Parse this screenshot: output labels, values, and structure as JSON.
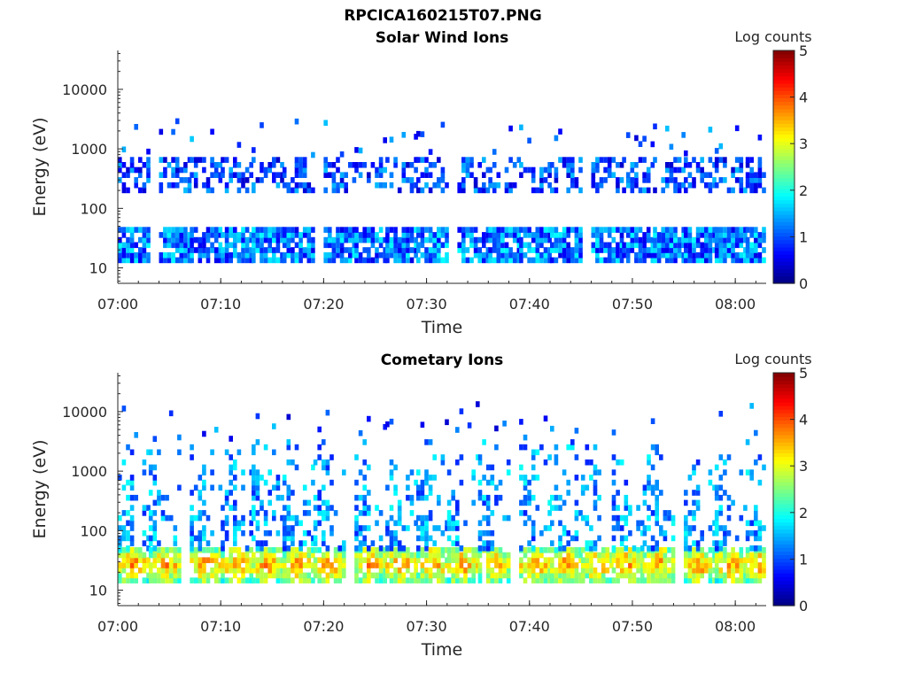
{
  "figure": {
    "title": "RPCICA160215T07.PNG"
  },
  "colorscale": {
    "label": "Log counts",
    "ticks": [
      "0",
      "1",
      "2",
      "3",
      "4",
      "5"
    ],
    "range": [
      0,
      5
    ],
    "colormap": "jet"
  },
  "chart_data": [
    {
      "type": "heatmap",
      "title": "Solar Wind Ions",
      "xlabel": "Time",
      "ylabel": "Energy (eV)",
      "x_ticks": [
        "07:00",
        "07:10",
        "07:20",
        "07:30",
        "07:40",
        "07:50",
        "08:00"
      ],
      "y_ticks": [
        "10",
        "100",
        "1000",
        "10000"
      ],
      "y_scale": "log",
      "xlim": [
        "07:00",
        "08:03"
      ],
      "ylim": [
        5.5,
        45000
      ],
      "colorbar_label": "Log counts",
      "color_range": [
        0,
        5
      ],
      "sweep_start_times": [
        "07:00",
        "07:04",
        "07:07",
        "07:10",
        "07:13",
        "07:16",
        "07:20",
        "07:23",
        "07:26",
        "07:29",
        "07:33",
        "07:36",
        "07:39",
        "07:42",
        "07:46",
        "07:49",
        "07:52",
        "07:55",
        "07:58",
        "08:01"
      ],
      "populations": [
        {
          "energy_range_eV": [
            12,
            45
          ],
          "log_counts": 1.2
        },
        {
          "energy_range_eV": [
            180,
            700
          ],
          "log_counts": 0.6
        }
      ]
    },
    {
      "type": "heatmap",
      "title": "Cometary Ions",
      "xlabel": "Time",
      "ylabel": "Energy (eV)",
      "x_ticks": [
        "07:00",
        "07:10",
        "07:20",
        "07:30",
        "07:40",
        "07:50",
        "08:00"
      ],
      "y_ticks": [
        "10",
        "100",
        "1000",
        "10000"
      ],
      "y_scale": "log",
      "xlim": [
        "07:00",
        "08:03"
      ],
      "ylim": [
        5.5,
        45000
      ],
      "colorbar_label": "Log counts",
      "color_range": [
        0,
        5
      ],
      "sweep_start_times": [
        "07:00",
        "07:03",
        "07:07",
        "07:10",
        "07:13",
        "07:16",
        "07:19",
        "07:23",
        "07:26",
        "07:29",
        "07:32",
        "07:35",
        "07:39",
        "07:42",
        "07:45",
        "07:48",
        "07:51",
        "07:55",
        "07:58",
        "08:01"
      ],
      "populations": [
        {
          "energy_range_eV": [
            13,
            45
          ],
          "log_counts": 2.6
        },
        {
          "energy_range_eV": [
            45,
            3000
          ],
          "log_counts": 1.0
        }
      ]
    }
  ]
}
